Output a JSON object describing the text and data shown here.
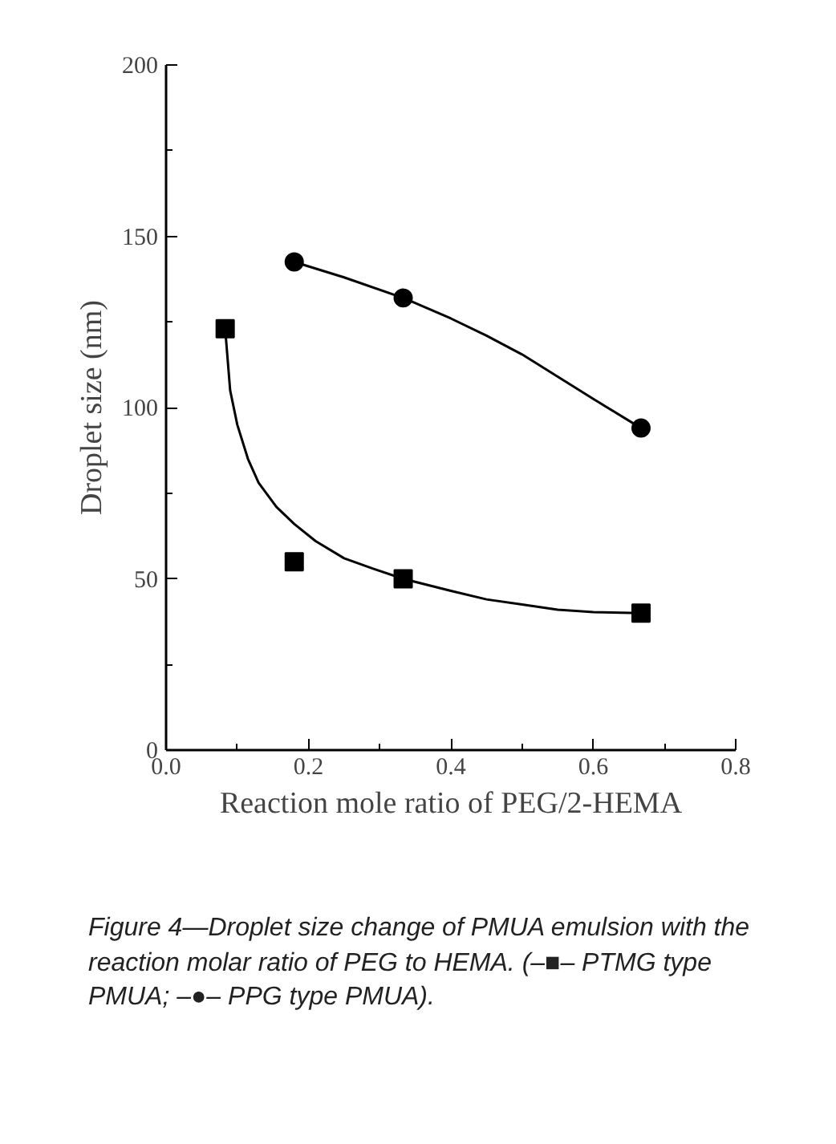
{
  "chart_data": {
    "type": "scatter",
    "xlabel": "Reaction mole ratio of PEG/2-HEMA",
    "ylabel": "Droplet size (nm)",
    "xlim": [
      0,
      0.8
    ],
    "ylim": [
      0,
      200
    ],
    "xticks": [
      {
        "value": 0,
        "label": "0.0"
      },
      0.2,
      0.4,
      0.6,
      0.8
    ],
    "yticks": [
      0,
      50,
      100,
      150,
      200
    ],
    "grid": false,
    "series": [
      {
        "marker": "square",
        "color": "#000000",
        "x": [
          0.083,
          0.18,
          0.333,
          0.667
        ],
        "values": [
          123,
          55,
          50,
          40
        ]
      },
      {
        "marker": "circle",
        "color": "#000000",
        "x": [
          0.18,
          0.333,
          0.667
        ],
        "values": [
          142.5,
          132,
          94
        ]
      },
      {
        "type": "line",
        "color": "#000000",
        "x": [
          0.083,
          0.09,
          0.1,
          0.115,
          0.13,
          0.155,
          0.18,
          0.21,
          0.25,
          0.29,
          0.333,
          0.4,
          0.45,
          0.5,
          0.55,
          0.6,
          0.667
        ],
        "values": [
          123,
          105,
          95,
          85,
          78,
          71,
          66,
          61,
          56,
          53,
          50,
          46.5,
          44,
          42.5,
          41,
          40.3,
          40
        ]
      },
      {
        "type": "line",
        "color": "#000000",
        "x": [
          0.18,
          0.25,
          0.333,
          0.4,
          0.45,
          0.5,
          0.55,
          0.6,
          0.667
        ],
        "values": [
          142.5,
          138,
          132,
          126,
          121,
          115.5,
          109,
          102.5,
          94
        ]
      }
    ],
    "annotations": [
      "Figure 4—Droplet size change of PMUA emulsion with the reaction molar ratio of PEG to HEMA. (–■– PTMG type PMUA; –●– PPG type PMUA)."
    ]
  }
}
